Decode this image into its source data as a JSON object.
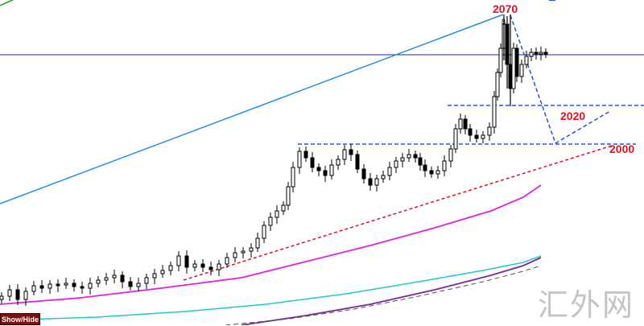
{
  "chart_data": {
    "type": "candlestick",
    "level_labels": [
      {
        "text": "2070",
        "color": "#e0102a"
      },
      {
        "text": "2020",
        "color": "#e0102a"
      },
      {
        "text": "2000",
        "color": "#e0102a"
      }
    ],
    "peak_marker": "8",
    "colors": {
      "candle_up": "#ffffff",
      "candle_down": "#000000",
      "candle_outline": "#000000",
      "ma_magenta": "#e020e0",
      "ma_cyan": "#20c8c8",
      "ma_purple": "#7a2a9a",
      "ma_dashed": "#505050",
      "channel_line": "#1e8ce0",
      "levels_dashed": "#2a50d0",
      "support_trend": "#e0102a",
      "horizontal_line": "#2020c0"
    }
  },
  "ui": {
    "show_hide_button": "Show/Hide",
    "watermark": "汇外网"
  }
}
